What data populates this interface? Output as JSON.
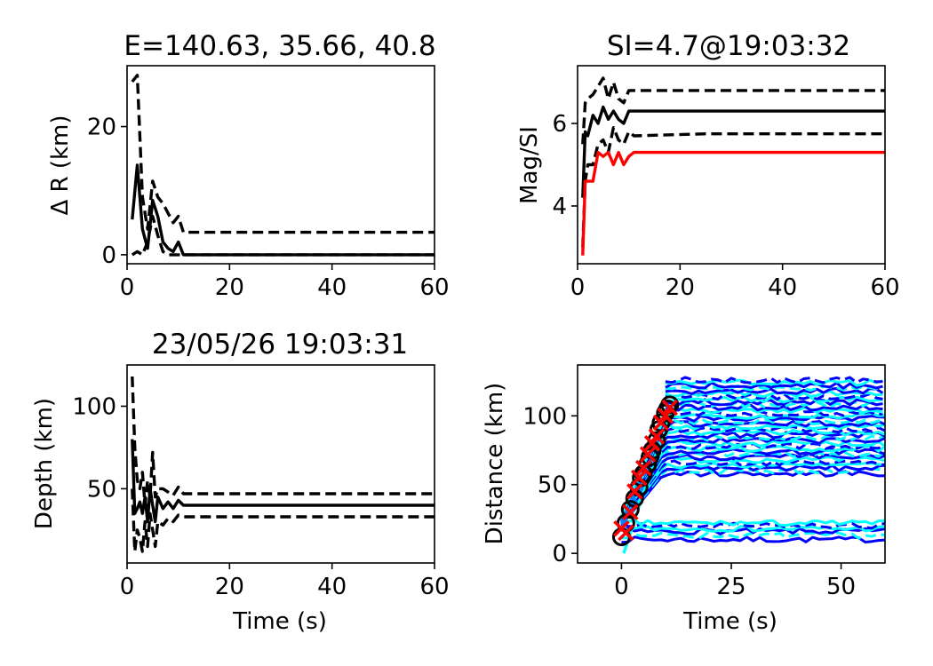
{
  "colors": {
    "black": "#000000",
    "red": "#ff0000",
    "blue": "#0000ff",
    "cyan": "#00ffff"
  },
  "chart_data": [
    {
      "id": "dr",
      "type": "line",
      "title": "E=140.63, 35.66, 40.8",
      "xlabel": "",
      "ylabel": "Δ R (km)",
      "xlim": [
        0,
        60
      ],
      "ylim": [
        -1.4,
        29.5
      ],
      "xticks": [
        0,
        20,
        40,
        60
      ],
      "yticks": [
        0,
        20
      ],
      "grid": false,
      "series": [
        {
          "color": "#000000",
          "dash": false,
          "x": [
            1,
            2,
            3,
            4,
            5,
            6,
            7,
            8,
            9,
            10,
            11,
            60
          ],
          "y": [
            5.5,
            14,
            4,
            1,
            8.5,
            6,
            2,
            1,
            0.5,
            2,
            0,
            0
          ]
        },
        {
          "color": "#000000",
          "dash": true,
          "x": [
            1,
            2,
            3,
            4,
            5,
            6,
            7,
            8,
            9,
            10,
            11,
            60
          ],
          "y": [
            27,
            28,
            9,
            4,
            11.5,
            9,
            8,
            6.5,
            5,
            6,
            3.5,
            3.5
          ]
        },
        {
          "color": "#000000",
          "dash": true,
          "x": [
            1,
            2,
            3,
            4,
            5,
            6,
            7,
            8,
            9,
            10,
            11,
            60
          ],
          "y": [
            0,
            0.5,
            0,
            2,
            6,
            3,
            0.5,
            0,
            0,
            0,
            0,
            0
          ]
        }
      ]
    },
    {
      "id": "mag",
      "type": "line",
      "title": "SI=4.7@19:03:32",
      "xlabel": "",
      "ylabel": "Mag/SI",
      "xlim": [
        0,
        60
      ],
      "ylim": [
        2.6,
        7.4
      ],
      "xticks": [
        0,
        20,
        40,
        60
      ],
      "yticks": [
        4,
        6
      ],
      "grid": false,
      "series": [
        {
          "color": "#000000",
          "dash": false,
          "x": [
            1,
            1.5,
            2,
            3,
            4,
            5,
            6,
            7,
            8,
            9,
            10,
            60
          ],
          "y": [
            4.2,
            5.8,
            5.7,
            6.2,
            6.0,
            6.4,
            6.1,
            6.3,
            6.1,
            6.0,
            6.3,
            6.3
          ]
        },
        {
          "color": "#000000",
          "dash": true,
          "x": [
            1,
            1.5,
            2,
            3,
            4,
            5,
            6,
            7,
            8,
            9,
            10,
            11,
            60
          ],
          "y": [
            5.5,
            6.5,
            6.6,
            6.7,
            6.9,
            7.1,
            6.6,
            7.0,
            6.6,
            6.5,
            6.8,
            6.8,
            6.8
          ]
        },
        {
          "color": "#000000",
          "dash": true,
          "x": [
            1,
            1.5,
            2,
            3,
            4,
            5,
            6,
            7,
            8,
            9,
            10,
            11,
            25,
            60
          ],
          "y": [
            3.0,
            4.6,
            5.0,
            5.0,
            5.5,
            5.6,
            5.3,
            5.9,
            5.6,
            5.5,
            5.8,
            5.7,
            5.75,
            5.75
          ]
        },
        {
          "color": "#ff0000",
          "dash": false,
          "x": [
            1,
            1.5,
            2,
            3,
            4,
            5,
            6,
            7,
            8,
            9,
            10,
            11,
            60
          ],
          "y": [
            2.8,
            4.6,
            4.6,
            4.6,
            5.3,
            5.2,
            5.3,
            5.0,
            5.3,
            5.0,
            5.2,
            5.3,
            5.3
          ]
        }
      ]
    },
    {
      "id": "depth",
      "type": "line",
      "title": "23/05/26 19:03:31",
      "xlabel": "Time (s)",
      "ylabel": "Depth (km)",
      "xlim": [
        0,
        60
      ],
      "ylim": [
        5,
        125
      ],
      "xticks": [
        0,
        20,
        40,
        60
      ],
      "yticks": [
        50,
        100
      ],
      "grid": false,
      "series": [
        {
          "color": "#000000",
          "dash": false,
          "x": [
            1,
            1.5,
            2,
            2.5,
            3,
            3.5,
            4,
            4.5,
            5,
            5.5,
            6,
            7,
            8,
            9,
            10,
            11,
            60
          ],
          "y": [
            80,
            35,
            38,
            42,
            35,
            45,
            30,
            50,
            40,
            30,
            45,
            38,
            42,
            38,
            43,
            40,
            40
          ]
        },
        {
          "color": "#000000",
          "dash": true,
          "x": [
            1,
            1.5,
            2,
            2.5,
            3,
            3.5,
            4,
            4.5,
            5,
            5.5,
            6,
            7,
            8,
            9,
            10,
            11,
            60
          ],
          "y": [
            118,
            75,
            55,
            50,
            60,
            40,
            55,
            45,
            72,
            45,
            50,
            50,
            48,
            46,
            51,
            47,
            47
          ]
        },
        {
          "color": "#000000",
          "dash": true,
          "x": [
            1,
            1.5,
            2,
            2.5,
            3,
            3.5,
            4,
            4.5,
            5,
            5.5,
            6,
            7,
            8,
            9,
            10,
            11,
            60
          ],
          "y": [
            50,
            12,
            25,
            20,
            12,
            30,
            15,
            35,
            25,
            15,
            30,
            28,
            32,
            30,
            34,
            33,
            33
          ]
        }
      ]
    },
    {
      "id": "dist",
      "type": "line",
      "title": "",
      "xlabel": "Time (s)",
      "ylabel": "Distance (km)",
      "xlim": [
        -10,
        60
      ],
      "ylim": [
        -7,
        137
      ],
      "xticks": [
        0,
        25,
        50
      ],
      "yticks": [
        0,
        50,
        100
      ],
      "grid": false,
      "family": {
        "colors": [
          "#0000ff",
          "#00ffff"
        ],
        "levels": [
          10,
          13,
          16,
          18,
          20,
          22,
          58,
          60,
          62,
          64,
          66,
          68,
          70,
          72,
          74,
          76,
          78,
          80,
          82,
          84,
          86,
          88,
          90,
          92,
          94,
          96,
          98,
          100,
          102,
          104,
          106,
          108,
          110,
          112,
          114,
          116,
          118,
          120,
          122,
          124,
          126
        ]
      },
      "series": [
        {
          "color": "#00ffff",
          "dash": true,
          "x": [
            0.5,
            12
          ],
          "y": [
            0,
            112
          ]
        }
      ],
      "markers": {
        "circles": {
          "color": "#000000",
          "x": [
            0,
            1,
            2,
            3,
            4,
            4.5,
            5,
            6,
            6.5,
            7,
            8,
            8.5,
            9,
            10,
            10.5,
            11
          ],
          "y": [
            12,
            22,
            32,
            40,
            48,
            55,
            58,
            65,
            70,
            75,
            82,
            90,
            95,
            102,
            105,
            108
          ]
        },
        "crosses": {
          "color": "#ff0000",
          "x": [
            0,
            1,
            2,
            3,
            4,
            5,
            6,
            7,
            8,
            9,
            10,
            11
          ],
          "y": [
            18,
            15,
            30,
            45,
            55,
            62,
            72,
            80,
            85,
            95,
            100,
            106
          ]
        }
      }
    }
  ]
}
